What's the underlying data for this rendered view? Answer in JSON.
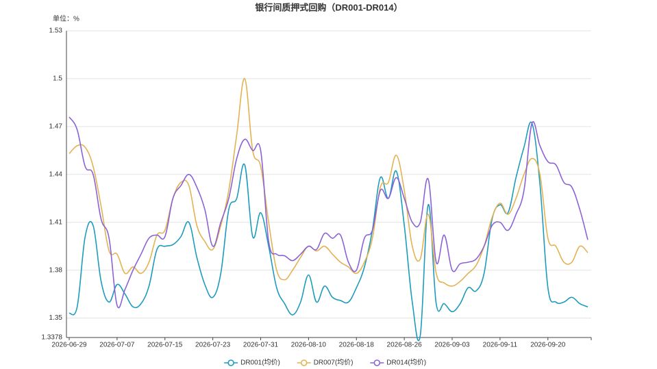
{
  "chart_data": {
    "type": "line",
    "title": "银行间质押式回购（DR001-DR014）",
    "y_axis_label": "单位：%",
    "categories": [
      "2026-06-29",
      null,
      null,
      null,
      null,
      null,
      "2026-07-07",
      null,
      null,
      null,
      null,
      null,
      "2026-07-15",
      null,
      null,
      null,
      null,
      null,
      "2026-07-23",
      null,
      null,
      null,
      null,
      null,
      "2026-07-31",
      null,
      null,
      null,
      null,
      null,
      "2026-08-10",
      null,
      null,
      null,
      null,
      null,
      "2026-08-18",
      null,
      null,
      null,
      null,
      null,
      "2026-08-26",
      null,
      null,
      null,
      null,
      null,
      "2026-09-03",
      null,
      null,
      null,
      null,
      null,
      "2026-09-11",
      null,
      null,
      null,
      null,
      null,
      "2026-09-20",
      null,
      null,
      null,
      null,
      null
    ],
    "series": [
      {
        "name": "DR001(均价)",
        "color": "#1d9bbd",
        "values": [
          1.353,
          1.357,
          1.401,
          1.408,
          1.373,
          1.36,
          1.371,
          1.365,
          1.357,
          1.359,
          1.37,
          1.393,
          1.395,
          1.396,
          1.401,
          1.41,
          1.388,
          1.371,
          1.363,
          1.378,
          1.418,
          1.425,
          1.446,
          1.401,
          1.416,
          1.395,
          1.369,
          1.359,
          1.352,
          1.36,
          1.377,
          1.36,
          1.37,
          1.363,
          1.361,
          1.36,
          1.369,
          1.382,
          1.405,
          1.438,
          1.425,
          1.442,
          1.408,
          1.36,
          1.339,
          1.421,
          1.359,
          1.359,
          1.354,
          1.359,
          1.369,
          1.367,
          1.378,
          1.412,
          1.421,
          1.416,
          1.438,
          1.457,
          1.472,
          1.434,
          1.369,
          1.36,
          1.36,
          1.363,
          1.359,
          1.357
        ]
      },
      {
        "name": "DR007(均价)",
        "color": "#e3b252",
        "values": [
          1.453,
          1.458,
          1.457,
          1.445,
          1.42,
          1.392,
          1.39,
          1.378,
          1.382,
          1.378,
          1.385,
          1.402,
          1.405,
          1.425,
          1.435,
          1.433,
          1.408,
          1.398,
          1.393,
          1.408,
          1.43,
          1.465,
          1.5,
          1.455,
          1.445,
          1.41,
          1.38,
          1.374,
          1.38,
          1.388,
          1.395,
          1.392,
          1.395,
          1.39,
          1.385,
          1.382,
          1.378,
          1.385,
          1.4,
          1.432,
          1.435,
          1.452,
          1.43,
          1.395,
          1.387,
          1.415,
          1.378,
          1.372,
          1.37,
          1.373,
          1.378,
          1.383,
          1.395,
          1.413,
          1.422,
          1.415,
          1.425,
          1.44,
          1.45,
          1.44,
          1.4,
          1.395,
          1.385,
          1.385,
          1.395,
          1.391
        ]
      },
      {
        "name": "DR014(均价)",
        "color": "#8b62d6",
        "values": [
          1.476,
          1.468,
          1.445,
          1.44,
          1.412,
          1.4,
          1.358,
          1.368,
          1.38,
          1.39,
          1.4,
          1.402,
          1.401,
          1.425,
          1.433,
          1.44,
          1.432,
          1.418,
          1.395,
          1.41,
          1.425,
          1.45,
          1.462,
          1.455,
          1.455,
          1.398,
          1.39,
          1.389,
          1.386,
          1.39,
          1.395,
          1.393,
          1.403,
          1.4,
          1.402,
          1.385,
          1.38,
          1.4,
          1.405,
          1.43,
          1.425,
          1.438,
          1.425,
          1.41,
          1.41,
          1.437,
          1.385,
          1.402,
          1.38,
          1.384,
          1.385,
          1.387,
          1.395,
          1.408,
          1.41,
          1.405,
          1.415,
          1.43,
          1.472,
          1.458,
          1.448,
          1.446,
          1.435,
          1.432,
          1.418,
          1.399
        ]
      }
    ],
    "ylim": [
      1.3378,
      1.53
    ],
    "yticks": [
      1.3378,
      1.35,
      1.38,
      1.41,
      1.44,
      1.47,
      1.5,
      1.53
    ],
    "grid": true,
    "legend": "bottom"
  }
}
